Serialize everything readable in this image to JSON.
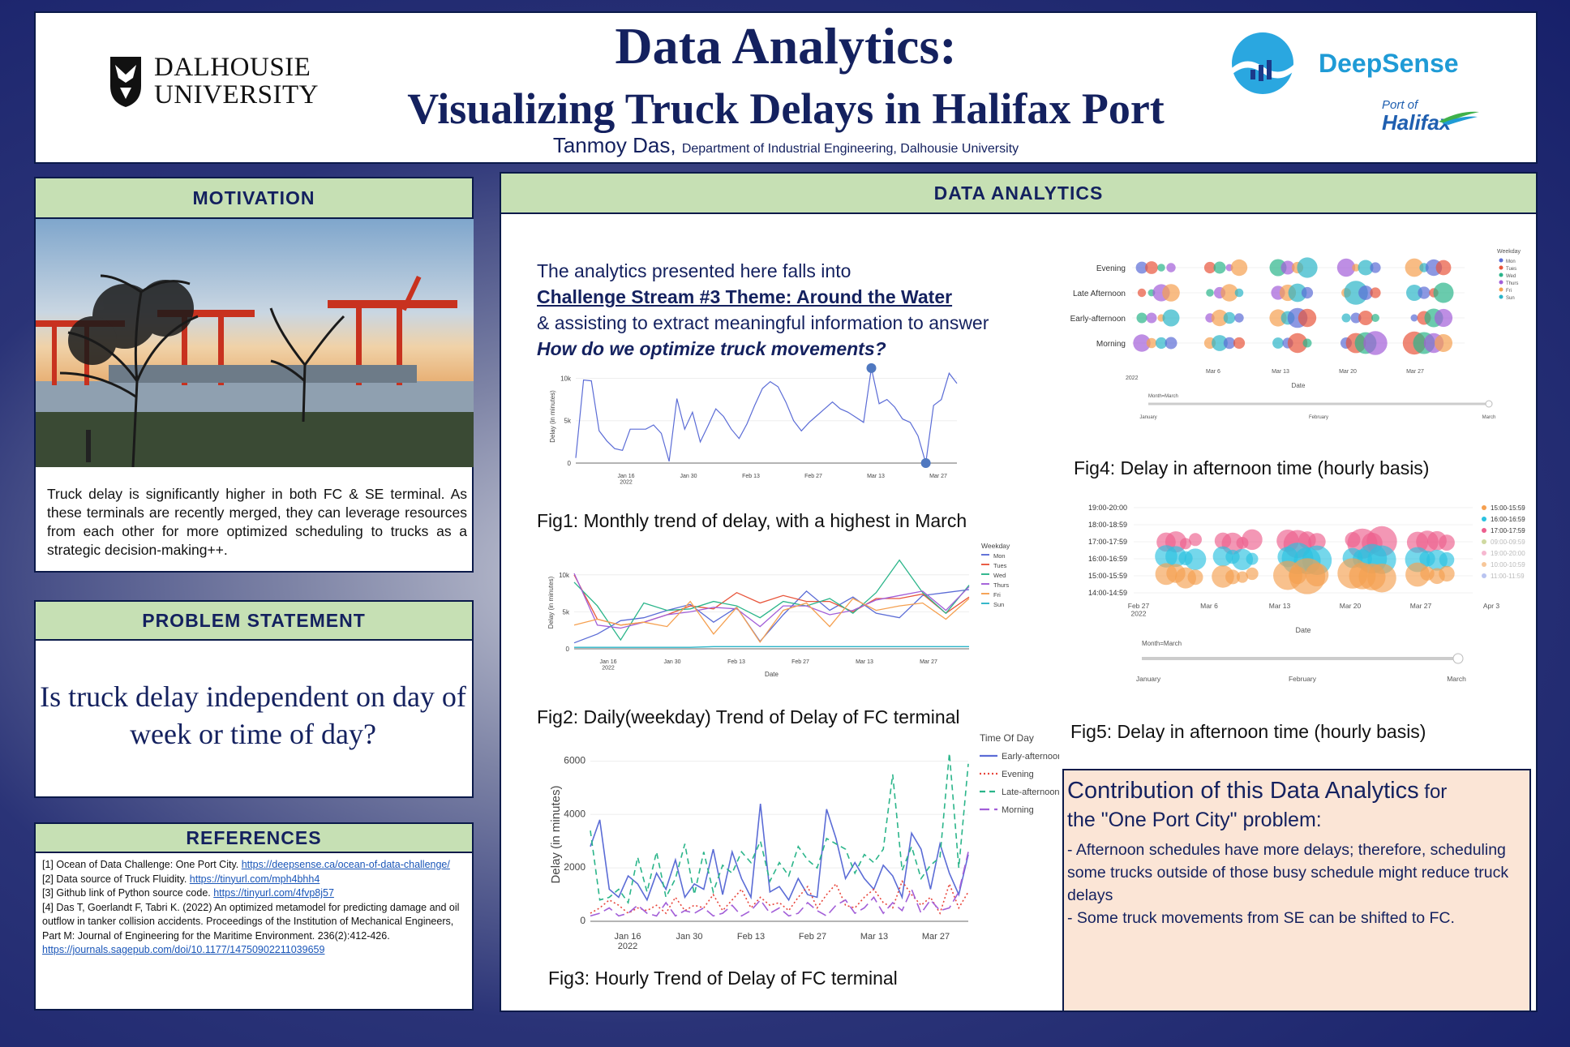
{
  "header": {
    "title_line1": "Data Analytics:",
    "title_line2": "Visualizing Truck Delays in Halifax Port",
    "author": "Tanmoy Das,",
    "department": "Department of Industrial Engineering, Dalhousie University",
    "logo_left_line1": "DALHOUSIE",
    "logo_left_line2": "UNIVERSITY",
    "logo_right": "DeepSense",
    "logo_port_line1": "Port of",
    "logo_port_line2": "Halifax"
  },
  "motivation": {
    "heading": "MOTIVATION",
    "text": "Truck delay is significantly higher in both FC & SE terminal. As these terminals are recently merged, they can leverage resources from each other for more optimized scheduling to trucks as a strategic decision-making++."
  },
  "problem": {
    "heading": "PROBLEM STATEMENT",
    "question": "Is truck delay independent on day of week or time of day?"
  },
  "references": {
    "heading": "REFERENCES",
    "items": [
      {
        "text": "[1] Ocean of Data Challenge: One Port City. ",
        "link": "https://deepsense.ca/ocean-of-data-challenge/"
      },
      {
        "text": "[2] Data source of Truck Fluidity. ",
        "link": "https://tinyurl.com/mph4bhh4"
      },
      {
        "text": "[3] Github link of Python source code. ",
        "link": "https://tinyurl.com/4fvp8j57"
      },
      {
        "text": "[4] Das T, Goerlandt F, Tabri K. (2022) An optimized metamodel for predicting damage and oil outflow in tanker collision accidents. Proceedings of the Institution of Mechanical Engineers, Part M: Journal of Engineering for the Maritime Environment. 236(2):412-426. ",
        "link": "https://journals.sagepub.com/doi/10.1177/14750902211039659"
      }
    ]
  },
  "analytics": {
    "heading": "DATA ANALYTICS",
    "intro_line1": "The analytics presented here falls into",
    "intro_line2": "Challenge Stream #3 Theme: Around the Water",
    "intro_line3": "& assisting to extract meaningful information to answer",
    "intro_line4": "How do we optimize truck movements?",
    "fig1_caption": "Fig1: Monthly trend of delay, with a highest in March",
    "fig2_caption": "Fig2: Daily(weekday) Trend of Delay of FC terminal",
    "fig3_caption": "Fig3: Hourly Trend of Delay of FC terminal",
    "fig4_caption": "Fig4: Delay in afternoon time (hourly basis)",
    "fig5_caption": "Fig5: Delay in afternoon time (hourly basis)"
  },
  "contribution": {
    "title_main": "Contribution of this Data Analytics",
    "title_small": " for",
    "title_line2": "the \"One Port City\" problem:",
    "bullet1": "- Afternoon schedules have more delays; therefore, scheduling some trucks outside of those busy schedule might reduce truck delays",
    "bullet2": "- Some truck movements from SE can be shifted to FC."
  },
  "colors": {
    "navy": "#14215f",
    "panel_head": "#c6e0b4",
    "contrib_bg": "#fbe5d6"
  },
  "chart_data": [
    {
      "type": "line",
      "id": "fig1",
      "ylabel": "Delay (in minutes)",
      "xticks": [
        "Jan 16\n2022",
        "Jan 30",
        "Feb 13",
        "Feb 27",
        "Mar 13",
        "Mar 27"
      ],
      "yticks": [
        "0",
        "5k",
        "10k"
      ],
      "ylim": [
        0,
        11000
      ],
      "series": [
        {
          "color": "#5b6cd6",
          "values": [
            600,
            9800,
            9700,
            3800,
            2600,
            1700,
            1500,
            4000,
            4000,
            4000,
            4500,
            3500,
            200,
            7600,
            4000,
            6000,
            2500,
            4400,
            6400,
            5500,
            4000,
            2900,
            4600,
            6800,
            8800,
            9600,
            9000,
            7200,
            5000,
            3800,
            4800,
            5600,
            6400,
            7200,
            6400,
            6000,
            5400,
            4800,
            11200,
            7000,
            7500,
            6600,
            5200,
            4800,
            3200,
            0,
            6800,
            7500,
            10600,
            9400
          ]
        }
      ],
      "markers": [
        {
          "index": 38,
          "value": 11200
        },
        {
          "index": 45,
          "value": 0
        }
      ]
    },
    {
      "type": "line",
      "id": "fig2",
      "xlabel": "Date",
      "ylabel": "Delay (in minutes)",
      "xticks": [
        "Jan 16\n2022",
        "Jan 30",
        "Feb 13",
        "Feb 27",
        "Mar 13",
        "Mar 27"
      ],
      "yticks": [
        "0",
        "5k",
        "10k"
      ],
      "ylim": [
        0,
        12500
      ],
      "legend_title": "Weekday",
      "series": [
        {
          "name": "Mon",
          "color": "#5b6cd6",
          "values": [
            800,
            2000,
            3800,
            4200,
            5200,
            6000,
            3600,
            5600,
            1000,
            4600,
            7800,
            5200,
            7000,
            4800,
            4200,
            7200,
            7600,
            8000
          ]
        },
        {
          "name": "Tues",
          "color": "#e8563c",
          "values": [
            10000,
            4000,
            3200,
            3600,
            4600,
            5800,
            5400,
            7600,
            6200,
            7200,
            6400,
            6400,
            5000,
            6800,
            6800,
            7400,
            4800,
            7000
          ]
        },
        {
          "name": "Wed",
          "color": "#2bb58a",
          "values": [
            9000,
            5800,
            1200,
            6200,
            5200,
            5400,
            6400,
            5800,
            4200,
            6400,
            5800,
            6800,
            4800,
            7600,
            12000,
            7600,
            4800,
            8600
          ]
        },
        {
          "name": "Thurs",
          "color": "#a25ed8",
          "values": [
            10200,
            3200,
            2800,
            3600,
            4600,
            5000,
            5600,
            5400,
            3000,
            5800,
            5800,
            4600,
            5200,
            6600,
            7200,
            7800,
            5200,
            8400
          ]
        },
        {
          "name": "Fri",
          "color": "#f5a050",
          "values": [
            3200,
            4000,
            3200,
            3600,
            3000,
            6400,
            2000,
            5600,
            900,
            5200,
            6200,
            3000,
            6800,
            5200,
            5800,
            6200,
            4000,
            6800
          ]
        },
        {
          "name": "Sun",
          "color": "#2bb5c8",
          "values": [
            200,
            200,
            200,
            200,
            200,
            200,
            300,
            300,
            300,
            300,
            300,
            300,
            300,
            300,
            300,
            300,
            300,
            300
          ]
        }
      ]
    },
    {
      "type": "line",
      "id": "fig3",
      "ylabel": "Delay (in minutes)",
      "xticks": [
        "Jan 16\n2022",
        "Jan 30",
        "Feb 13",
        "Feb 27",
        "Mar 13",
        "Mar 27"
      ],
      "yticks": [
        "0",
        "2000",
        "4000",
        "6000"
      ],
      "ylim": [
        0,
        6500
      ],
      "legend_title": "Time Of Day",
      "series": [
        {
          "name": "Early-afternoon",
          "color": "#5b6cd6",
          "style": "solid",
          "values": [
            2800,
            3800,
            1200,
            900,
            1700,
            1400,
            800,
            1800,
            1200,
            2300,
            900,
            1400,
            1200,
            2700,
            1000,
            2600,
            1600,
            900,
            4400,
            1100,
            1300,
            800,
            1600,
            1000,
            900,
            4200,
            3100,
            1600,
            2200,
            1600,
            1200,
            2100,
            1700,
            900,
            3300,
            2700,
            1200,
            2900,
            1800,
            1000,
            2500
          ]
        },
        {
          "name": "Evening",
          "color": "#e8463c",
          "style": "dotted",
          "values": [
            300,
            500,
            800,
            600,
            300,
            500,
            400,
            600,
            300,
            900,
            400,
            600,
            500,
            1000,
            400,
            800,
            1200,
            500,
            900,
            600,
            700,
            400,
            900,
            1300,
            500,
            1000,
            1400,
            600,
            500,
            900,
            1200,
            700,
            500,
            1500,
            1000,
            600,
            900,
            300,
            1400,
            500,
            1100
          ]
        },
        {
          "name": "Late-afternoon",
          "color": "#2bb58a",
          "style": "dashed",
          "values": [
            3400,
            800,
            900,
            1200,
            700,
            2400,
            1100,
            2600,
            900,
            1600,
            2900,
            1000,
            2600,
            1100,
            2100,
            1800,
            2600,
            2200,
            3000,
            1500,
            2200,
            1700,
            2800,
            2300,
            2000,
            3100,
            2900,
            2700,
            1800,
            2500,
            2200,
            2700,
            5500,
            1900,
            2800,
            1600,
            2100,
            2400,
            6300,
            2000,
            5900
          ]
        },
        {
          "name": "Morning",
          "color": "#a25ed8",
          "style": "longdash",
          "values": [
            200,
            300,
            500,
            200,
            300,
            600,
            300,
            200,
            700,
            200,
            400,
            300,
            500,
            200,
            300,
            600,
            200,
            400,
            800,
            300,
            500,
            200,
            300,
            700,
            400,
            200,
            600,
            800,
            300,
            500,
            900,
            300,
            700,
            400,
            1200,
            300,
            800,
            400,
            500,
            1100,
            2600
          ]
        }
      ]
    },
    {
      "type": "scatter",
      "id": "fig4",
      "xlabel": "Date",
      "xticks": [
        "Mar 6",
        "Mar 13",
        "Mar 20",
        "Mar 27"
      ],
      "year_label": "2022",
      "rows": [
        "Evening",
        "Late Afternoon",
        "Early-afternoon",
        "Morning"
      ],
      "legend_title": "Weekday",
      "legend": [
        "Mon",
        "Tues",
        "Wed",
        "Thurs",
        "Fri",
        "Sun"
      ],
      "slider_label": "Month=March",
      "slider_ticks": [
        "January",
        "February",
        "March"
      ]
    },
    {
      "type": "scatter",
      "id": "fig5",
      "xlabel": "Date",
      "xticks": [
        "Feb 27\n2022",
        "Mar 6",
        "Mar 13",
        "Mar 20",
        "Mar 27",
        "Apr 3"
      ],
      "rows": [
        "19:00-20:00",
        "18:00-18:59",
        "17:00-17:59",
        "16:00-16:59",
        "15:00-15:59",
        "14:00-14:59"
      ],
      "legend": [
        "15:00-15:59",
        "16:00-16:59",
        "17:00-17:59",
        "09:00-09:59",
        "19:00-20:00",
        "10:00-10:59",
        "11:00-11:59"
      ],
      "slider_label": "Month=March",
      "slider_ticks": [
        "January",
        "February",
        "March"
      ]
    }
  ]
}
